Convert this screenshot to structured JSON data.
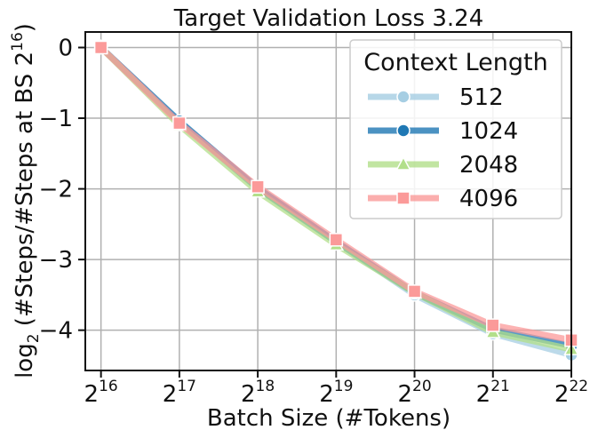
{
  "chart_data": {
    "type": "line",
    "title": "Target Validation Loss 3.24",
    "xlabel": "Batch Size (#Tokens)",
    "ylabel": {
      "base": "log",
      "sub": "2",
      "rest": " (#Steps/#Steps at BS 2",
      "sup": "16",
      "close": ")"
    },
    "x": [
      16,
      17,
      18,
      19,
      20,
      21,
      22
    ],
    "x_tick_labels": [
      {
        "base": "2",
        "exp": "16"
      },
      {
        "base": "2",
        "exp": "17"
      },
      {
        "base": "2",
        "exp": "18"
      },
      {
        "base": "2",
        "exp": "19"
      },
      {
        "base": "2",
        "exp": "20"
      },
      {
        "base": "2",
        "exp": "21"
      },
      {
        "base": "2",
        "exp": "22"
      }
    ],
    "y_ticks": [
      0,
      -1,
      -2,
      -3,
      -4
    ],
    "y_tick_labels": [
      "0",
      "−1",
      "−2",
      "−3",
      "−4"
    ],
    "xlim": [
      15.8,
      22.0
    ],
    "ylim": [
      -4.57,
      0.22
    ],
    "grid": true,
    "legend": {
      "title": "Context Length",
      "placement": "top-right"
    },
    "series": [
      {
        "name": "512",
        "color": "#a6cee3",
        "marker": "circle",
        "values": [
          0,
          -1.05,
          -2.0,
          -2.75,
          -3.5,
          -4.05,
          -4.35
        ]
      },
      {
        "name": "1024",
        "color": "#1f78b4",
        "marker": "circle",
        "values": [
          0,
          -1.04,
          -1.99,
          -2.75,
          -3.47,
          -3.99,
          -4.22
        ]
      },
      {
        "name": "2048",
        "color": "#b2df8a",
        "marker": "triangle",
        "values": [
          0,
          -1.1,
          -2.04,
          -2.79,
          -3.47,
          -4.03,
          -4.27
        ]
      },
      {
        "name": "4096",
        "color": "#fb9a99",
        "marker": "square",
        "values": [
          0,
          -1.07,
          -1.97,
          -2.72,
          -3.45,
          -3.93,
          -4.14
        ]
      }
    ]
  }
}
